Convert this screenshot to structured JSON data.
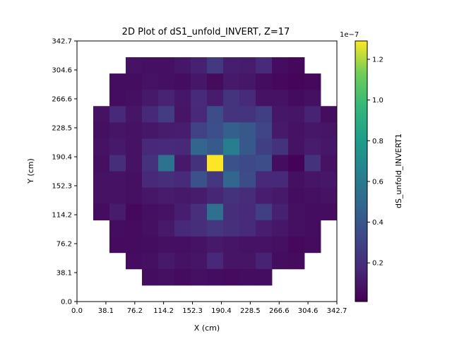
{
  "chart_data": {
    "type": "heatmap",
    "title": "2D Plot of dS1_unfold_INVERT, Z=17",
    "xlabel": "X (cm)",
    "ylabel": "Y (cm)",
    "xlim": [
      0.0,
      342.7
    ],
    "ylim": [
      0.0,
      342.7
    ],
    "x_ticks": [
      "0.0",
      "38.1",
      "76.2",
      "114.2",
      "152.3",
      "190.4",
      "228.5",
      "266.6",
      "304.6",
      "342.7"
    ],
    "y_ticks": [
      "0.0",
      "38.1",
      "76.2",
      "114.2",
      "152.3",
      "190.4",
      "228.5",
      "266.6",
      "304.6",
      "342.7"
    ],
    "colorbar": {
      "label": "dS_unfold_INVERT1",
      "scale_label": "1e−7",
      "ticks": [
        "0.2",
        "0.4",
        "0.6",
        "0.8",
        "1.0",
        "1.2"
      ],
      "tick_values": [
        0.2,
        0.4,
        0.6,
        0.8,
        1.0,
        1.2
      ],
      "vmin": 0.01,
      "vmax": 1.29,
      "colormap": "viridis"
    },
    "grid": false,
    "legend": "none",
    "grid_size": 16,
    "cell_size": 21.42,
    "rows_top_to_bottom": [
      [
        null,
        null,
        null,
        null,
        null,
        null,
        null,
        null,
        null,
        null,
        null,
        null,
        null,
        null,
        null,
        null
      ],
      [
        null,
        null,
        null,
        0.08,
        0.07,
        0.07,
        0.1,
        0.14,
        0.25,
        0.13,
        0.12,
        0.18,
        0.06,
        0.04,
        null,
        null
      ],
      [
        null,
        null,
        0.06,
        0.06,
        0.08,
        0.07,
        0.06,
        0.1,
        0.05,
        0.11,
        0.1,
        0.06,
        0.04,
        0.03,
        0.04,
        null
      ],
      [
        null,
        null,
        0.06,
        0.07,
        0.11,
        0.15,
        0.1,
        0.18,
        0.12,
        0.23,
        0.18,
        0.08,
        0.08,
        0.05,
        0.07,
        null
      ],
      [
        null,
        0.08,
        0.17,
        0.09,
        0.17,
        0.27,
        0.09,
        0.17,
        0.35,
        0.23,
        0.23,
        0.28,
        0.1,
        0.09,
        0.15,
        0.06
      ],
      [
        null,
        0.07,
        0.09,
        0.08,
        0.1,
        0.12,
        0.13,
        0.29,
        0.36,
        0.45,
        0.41,
        0.31,
        0.11,
        0.08,
        0.1,
        0.09
      ],
      [
        null,
        0.08,
        0.11,
        0.08,
        0.17,
        0.18,
        0.17,
        0.48,
        0.42,
        0.62,
        0.4,
        0.28,
        0.22,
        0.08,
        0.12,
        0.1
      ],
      [
        null,
        0.07,
        0.2,
        0.08,
        0.22,
        0.55,
        0.11,
        0.22,
        1.29,
        0.37,
        0.33,
        0.35,
        0.06,
        0.02,
        0.22,
        0.08
      ],
      [
        null,
        0.08,
        0.08,
        0.07,
        0.17,
        0.2,
        0.18,
        0.37,
        0.24,
        0.48,
        0.34,
        0.17,
        0.17,
        0.07,
        0.09,
        0.1
      ],
      [
        null,
        0.08,
        0.08,
        0.07,
        0.1,
        0.12,
        0.11,
        0.12,
        0.16,
        0.22,
        0.19,
        0.13,
        0.11,
        0.06,
        0.07,
        0.08
      ],
      [
        null,
        0.06,
        0.12,
        0.04,
        0.07,
        0.08,
        0.13,
        0.21,
        0.54,
        0.2,
        0.18,
        0.28,
        0.14,
        0.07,
        0.06,
        0.06
      ],
      [
        null,
        null,
        0.06,
        0.05,
        0.07,
        0.11,
        0.17,
        0.2,
        0.24,
        0.21,
        0.18,
        0.13,
        0.1,
        0.07,
        0.06,
        null
      ],
      [
        null,
        null,
        0.05,
        0.05,
        0.06,
        0.07,
        0.07,
        0.08,
        0.11,
        0.09,
        0.08,
        0.08,
        0.07,
        0.04,
        0.05,
        null
      ],
      [
        null,
        null,
        null,
        0.06,
        0.07,
        0.11,
        0.08,
        0.09,
        0.17,
        0.09,
        0.09,
        0.15,
        0.06,
        0.05,
        null,
        null
      ],
      [
        null,
        null,
        null,
        null,
        0.06,
        0.07,
        0.05,
        0.07,
        0.06,
        0.05,
        0.06,
        0.06,
        null,
        null,
        null,
        null
      ],
      [
        null,
        null,
        null,
        null,
        null,
        null,
        null,
        null,
        null,
        null,
        null,
        null,
        null,
        null,
        null,
        null
      ]
    ]
  }
}
